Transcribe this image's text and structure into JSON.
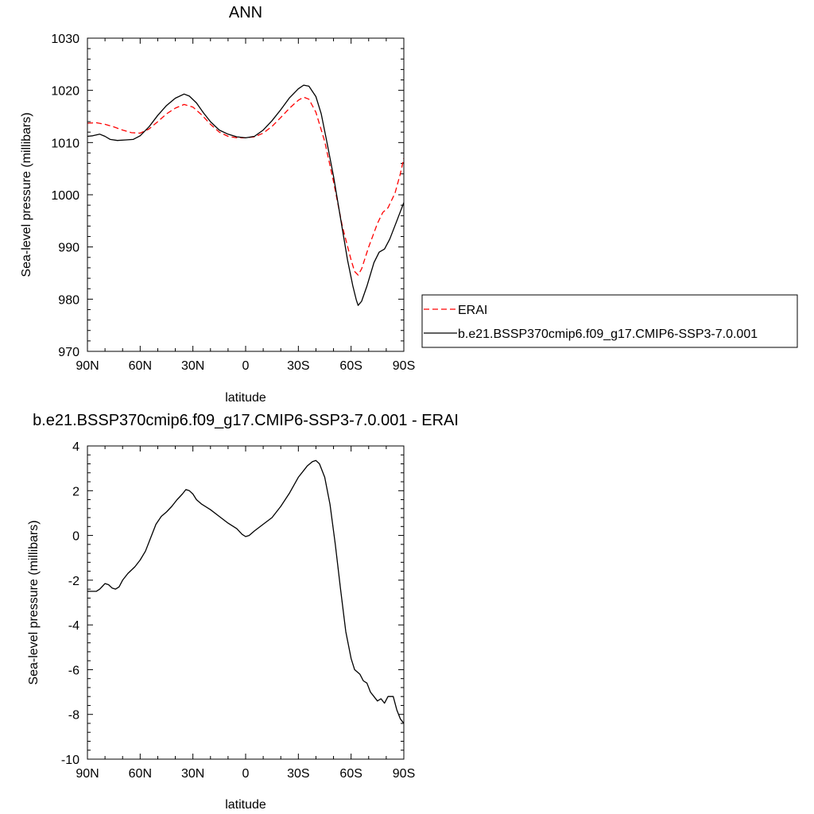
{
  "chart_data": [
    {
      "type": "line",
      "title": "ANN",
      "xlabel": "latitude",
      "ylabel": "Sea-level pressure (millibars)",
      "xlim": [
        90,
        -90
      ],
      "ylim": [
        970,
        1030
      ],
      "x_ticks": [
        90,
        60,
        30,
        0,
        -30,
        -60,
        -90
      ],
      "x_tick_labels": [
        "90N",
        "60N",
        "30N",
        "0",
        "30S",
        "60S",
        "90S"
      ],
      "y_ticks": [
        970,
        980,
        990,
        1000,
        1010,
        1020,
        1030
      ],
      "y_tick_labels": [
        "970",
        "980",
        "990",
        "1000",
        "1010",
        "1020",
        "1030"
      ],
      "grid": false,
      "legend_position": "right",
      "series": [
        {
          "name": "ERAI",
          "color": "#ff0000",
          "dash": "dashed",
          "points": [
            [
              90,
              1013.7
            ],
            [
              85,
              1013.8
            ],
            [
              80,
              1013.5
            ],
            [
              75,
              1013.0
            ],
            [
              70,
              1012.4
            ],
            [
              65,
              1011.9
            ],
            [
              60,
              1011.8
            ],
            [
              55,
              1012.6
            ],
            [
              50,
              1014.0
            ],
            [
              45,
              1015.5
            ],
            [
              40,
              1016.6
            ],
            [
              35,
              1017.3
            ],
            [
              30,
              1016.8
            ],
            [
              25,
              1015.3
            ],
            [
              20,
              1013.5
            ],
            [
              15,
              1012.0
            ],
            [
              10,
              1011.2
            ],
            [
              5,
              1010.9
            ],
            [
              0,
              1010.9
            ],
            [
              -5,
              1011.1
            ],
            [
              -10,
              1011.8
            ],
            [
              -15,
              1013.1
            ],
            [
              -20,
              1014.8
            ],
            [
              -25,
              1016.6
            ],
            [
              -30,
              1018.1
            ],
            [
              -33,
              1018.7
            ],
            [
              -36,
              1018.3
            ],
            [
              -40,
              1015.8
            ],
            [
              -45,
              1010.2
            ],
            [
              -50,
              1002.5
            ],
            [
              -55,
              994.0
            ],
            [
              -60,
              987.5
            ],
            [
              -62,
              985.3
            ],
            [
              -64,
              984.6
            ],
            [
              -66,
              985.8
            ],
            [
              -70,
              990.0
            ],
            [
              -75,
              994.5
            ],
            [
              -78,
              996.6
            ],
            [
              -81,
              997.5
            ],
            [
              -85,
              1000.3
            ],
            [
              -88,
              1004.0
            ],
            [
              -90,
              1007.0
            ]
          ]
        },
        {
          "name": "b.e21.BSSP370cmip6.f09_g17.CMIP6-SSP3-7.0.001",
          "color": "#000000",
          "dash": "solid",
          "points": [
            [
              90,
              1011.2
            ],
            [
              87,
              1011.3
            ],
            [
              83,
              1011.6
            ],
            [
              80,
              1011.2
            ],
            [
              77,
              1010.6
            ],
            [
              73,
              1010.4
            ],
            [
              68,
              1010.5
            ],
            [
              64,
              1010.6
            ],
            [
              60,
              1011.3
            ],
            [
              55,
              1013.0
            ],
            [
              50,
              1015.2
            ],
            [
              45,
              1017.1
            ],
            [
              40,
              1018.5
            ],
            [
              35,
              1019.3
            ],
            [
              32,
              1018.9
            ],
            [
              28,
              1017.6
            ],
            [
              24,
              1015.7
            ],
            [
              20,
              1014.0
            ],
            [
              15,
              1012.4
            ],
            [
              10,
              1011.6
            ],
            [
              5,
              1011.1
            ],
            [
              0,
              1010.9
            ],
            [
              -5,
              1011.2
            ],
            [
              -10,
              1012.4
            ],
            [
              -15,
              1014.2
            ],
            [
              -20,
              1016.3
            ],
            [
              -25,
              1018.6
            ],
            [
              -30,
              1020.3
            ],
            [
              -33,
              1021.0
            ],
            [
              -36,
              1020.8
            ],
            [
              -40,
              1018.8
            ],
            [
              -43,
              1015.5
            ],
            [
              -46,
              1010.5
            ],
            [
              -50,
              1003.5
            ],
            [
              -54,
              995.5
            ],
            [
              -58,
              987.5
            ],
            [
              -61,
              982.5
            ],
            [
              -63,
              979.8
            ],
            [
              -64,
              978.8
            ],
            [
              -66,
              979.6
            ],
            [
              -69,
              982.5
            ],
            [
              -73,
              987.0
            ],
            [
              -76,
              989.0
            ],
            [
              -79,
              989.6
            ],
            [
              -82,
              991.5
            ],
            [
              -86,
              995.0
            ],
            [
              -90,
              998.5
            ]
          ]
        }
      ]
    },
    {
      "type": "line",
      "title": "b.e21.BSSP370cmip6.f09_g17.CMIP6-SSP3-7.0.001 - ERAI",
      "xlabel": "latitude",
      "ylabel": "Sea-level pressure (millibars)",
      "xlim": [
        90,
        -90
      ],
      "ylim": [
        -10,
        4
      ],
      "x_ticks": [
        90,
        60,
        30,
        0,
        -30,
        -60,
        -90
      ],
      "x_tick_labels": [
        "90N",
        "60N",
        "30N",
        "0",
        "30S",
        "60S",
        "90S"
      ],
      "y_ticks": [
        -10,
        -8,
        -6,
        -4,
        -2,
        0,
        2,
        4
      ],
      "y_tick_labels": [
        "-10",
        "-8",
        "-6",
        "-4",
        "-2",
        "0",
        "2",
        "4"
      ],
      "grid": false,
      "series": [
        {
          "color": "#000000",
          "dash": "solid",
          "points": [
            [
              90,
              -2.5
            ],
            [
              85,
              -2.5
            ],
            [
              83,
              -2.4
            ],
            [
              80,
              -2.15
            ],
            [
              78,
              -2.2
            ],
            [
              76,
              -2.35
            ],
            [
              74,
              -2.4
            ],
            [
              72,
              -2.3
            ],
            [
              70,
              -2.0
            ],
            [
              67,
              -1.7
            ],
            [
              63,
              -1.4
            ],
            [
              60,
              -1.1
            ],
            [
              57,
              -0.7
            ],
            [
              54,
              -0.1
            ],
            [
              51,
              0.5
            ],
            [
              48,
              0.85
            ],
            [
              45,
              1.05
            ],
            [
              42,
              1.3
            ],
            [
              39,
              1.6
            ],
            [
              36,
              1.85
            ],
            [
              34,
              2.05
            ],
            [
              32,
              2.0
            ],
            [
              30,
              1.85
            ],
            [
              28,
              1.6
            ],
            [
              25,
              1.4
            ],
            [
              20,
              1.15
            ],
            [
              15,
              0.85
            ],
            [
              10,
              0.55
            ],
            [
              5,
              0.3
            ],
            [
              2,
              0.05
            ],
            [
              0,
              -0.05
            ],
            [
              -2,
              0.0
            ],
            [
              -5,
              0.2
            ],
            [
              -10,
              0.5
            ],
            [
              -15,
              0.8
            ],
            [
              -20,
              1.3
            ],
            [
              -25,
              1.9
            ],
            [
              -30,
              2.6
            ],
            [
              -35,
              3.1
            ],
            [
              -38,
              3.3
            ],
            [
              -40,
              3.35
            ],
            [
              -42,
              3.2
            ],
            [
              -45,
              2.6
            ],
            [
              -48,
              1.4
            ],
            [
              -51,
              -0.4
            ],
            [
              -54,
              -2.4
            ],
            [
              -57,
              -4.3
            ],
            [
              -60,
              -5.5
            ],
            [
              -62,
              -6.0
            ],
            [
              -65,
              -6.2
            ],
            [
              -67,
              -6.5
            ],
            [
              -69,
              -6.6
            ],
            [
              -71,
              -7.0
            ],
            [
              -73,
              -7.2
            ],
            [
              -75,
              -7.4
            ],
            [
              -77,
              -7.3
            ],
            [
              -79,
              -7.5
            ],
            [
              -81,
              -7.2
            ],
            [
              -84,
              -7.2
            ],
            [
              -86,
              -7.8
            ],
            [
              -88,
              -8.2
            ],
            [
              -90,
              -8.4
            ]
          ]
        }
      ]
    }
  ]
}
